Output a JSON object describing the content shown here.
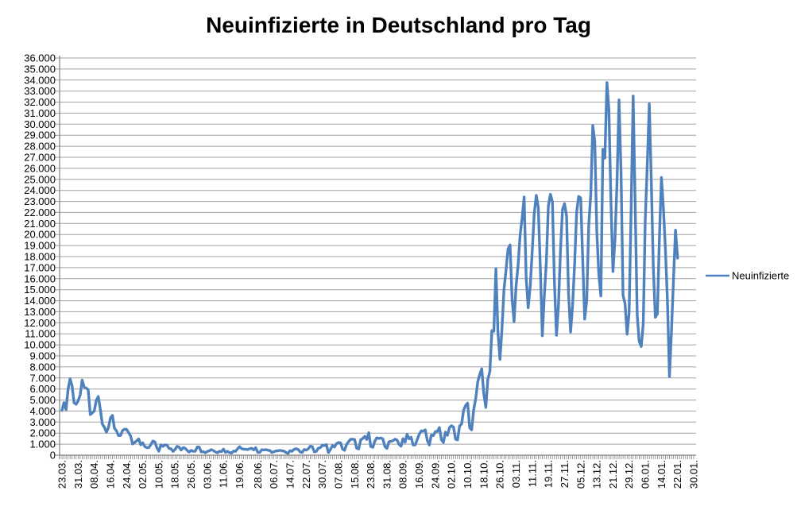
{
  "chart_data": {
    "type": "line",
    "title": "Neuinfizierte in Deutschland pro Tag",
    "grid": "horizontal",
    "legend_position": "right",
    "x_frequency": "daily",
    "x_range_start": "23.03.",
    "x_range_end": "22.01.",
    "ylim": [
      0,
      36000
    ],
    "y_step": 1000,
    "y_tick_labels": [
      "0",
      "1.000",
      "2.000",
      "3.000",
      "4.000",
      "5.000",
      "6.000",
      "7.000",
      "8.000",
      "9.000",
      "10.000",
      "11.000",
      "12.000",
      "13.000",
      "14.000",
      "15.000",
      "16.000",
      "17.000",
      "18.000",
      "19.000",
      "20.000",
      "21.000",
      "22.000",
      "23.000",
      "24.000",
      "25.000",
      "26.000",
      "27.000",
      "28.000",
      "29.000",
      "30.000",
      "31.000",
      "32.000",
      "33.000",
      "34.000",
      "35.000",
      "36.000"
    ],
    "x_tick_labels": [
      "23.03.",
      "31.03.",
      "08.04.",
      "16.04.",
      "24.04.",
      "02.05.",
      "10.05.",
      "18.05.",
      "26.05.",
      "03.06.",
      "11.06.",
      "19.06.",
      "28.06.",
      "06.07.",
      "14.07.",
      "22.07.",
      "30.07.",
      "07.08.",
      "15.08.",
      "23.08.",
      "31.08.",
      "08.09.",
      "16.09.",
      "24.09.",
      "02.10.",
      "10.10.",
      "18.10.",
      "26.10.",
      "03.11.",
      "11.11.",
      "19.11.",
      "27.11.",
      "05.12.",
      "13.12.",
      "21.12.",
      "29.12.",
      "06.01.",
      "14.01.",
      "22.01.",
      "30.01."
    ],
    "x_tick_day_index": [
      0,
      8,
      16,
      24,
      32,
      40,
      48,
      56,
      64,
      72,
      80,
      88,
      97,
      105,
      113,
      121,
      129,
      137,
      145,
      153,
      161,
      169,
      177,
      185,
      193,
      201,
      209,
      217,
      225,
      233,
      241,
      249,
      257,
      265,
      273,
      281,
      289,
      297,
      305,
      313
    ],
    "x_axis_total_days": 313,
    "colors": {
      "line": "#4F81BD",
      "grid": "#A0A0A0",
      "axis": "#808080",
      "text": "#000000",
      "background": "#FFFFFF"
    },
    "series": [
      {
        "name": "Neuinfizierte",
        "color": "#4F81BD",
        "values": [
          4062,
          4764,
          4118,
          5940,
          6933,
          6294,
          4751,
          4615,
          4923,
          5453,
          6813,
          6174,
          6082,
          5936,
          3677,
          3834,
          4003,
          4974,
          5323,
          4133,
          2821,
          2537,
          2082,
          2486,
          3380,
          3609,
          2458,
          2202,
          1775,
          1785,
          2237,
          2352,
          2337,
          2055,
          1737,
          1018,
          1144,
          1304,
          1478,
          945,
          1125,
          793,
          679,
          685,
          947,
          1284,
          1209,
          667,
          357,
          933,
          798,
          933,
          913,
          620,
          583,
          342,
          513,
          797,
          745,
          460,
          678,
          638,
          431,
          289,
          432,
          362,
          353,
          741,
          738,
          286,
          333,
          213,
          342,
          394,
          507,
          407,
          301,
          214,
          350,
          318,
          555,
          258,
          348,
          247,
          192,
          378,
          345,
          580,
          770,
          601,
          537,
          538,
          503,
          587,
          630,
          477,
          687,
          256,
          262,
          498,
          466,
          503,
          446,
          422,
          239,
          312,
          390,
          397,
          442,
          395,
          378,
          248,
          159,
          412,
          351,
          534,
          583,
          529,
          305,
          249,
          522,
          454,
          569,
          815,
          781,
          305,
          340,
          633,
          684,
          902,
          870,
          955,
          240,
          509,
          879,
          741,
          1045,
          1147,
          1122,
          555,
          436,
          966,
          1226,
          1445,
          1449,
          1415,
          625,
          561,
          1390,
          1510,
          1707,
          1427,
          2034,
          782,
          711,
          1278,
          1576,
          1507,
          1571,
          1479,
          785,
          610,
          1218,
          1256,
          1311,
          1453,
          1378,
          988,
          814,
          1499,
          1176,
          1892,
          1484,
          1630,
          920,
          927,
          1407,
          1901,
          2194,
          2179,
          2297,
          1345,
          922,
          1821,
          1769,
          2143,
          2153,
          2507,
          1411,
          1144,
          2089,
          1798,
          2503,
          2673,
          2563,
          1450,
          1382,
          2639,
          2828,
          4058,
          4516,
          4721,
          2467,
          2297,
          4122,
          5132,
          6638,
          7334,
          7830,
          5587,
          4325,
          6868,
          7595,
          11287,
          11242,
          16900,
          11176,
          8685,
          11409,
          14964,
          16774,
          18681,
          19059,
          14177,
          12097,
          15352,
          17214,
          19990,
          21506,
          23399,
          16017,
          13363,
          15332,
          18487,
          21866,
          23542,
          22461,
          16947,
          10824,
          14419,
          17561,
          22609,
          23648,
          22964,
          15741,
          10864,
          13554,
          18633,
          22268,
          22806,
          21695,
          14611,
          11169,
          13604,
          17270,
          22046,
          23449,
          23318,
          17767,
          12332,
          14054,
          20815,
          23679,
          29875,
          28438,
          20200,
          16362,
          14432,
          27728,
          26923,
          33777,
          31300,
          22771,
          16643,
          19528,
          24740,
          32195,
          25533,
          14455,
          13755,
          10976,
          12892,
          22459,
          32552,
          22924,
          12690,
          10315,
          9847,
          11897,
          21237,
          26391,
          31849,
          24694,
          16946,
          12497,
          12802,
          19600,
          25164,
          22368,
          18678,
          13882,
          7141,
          11369,
          15974,
          20398,
          17862
        ]
      }
    ]
  }
}
